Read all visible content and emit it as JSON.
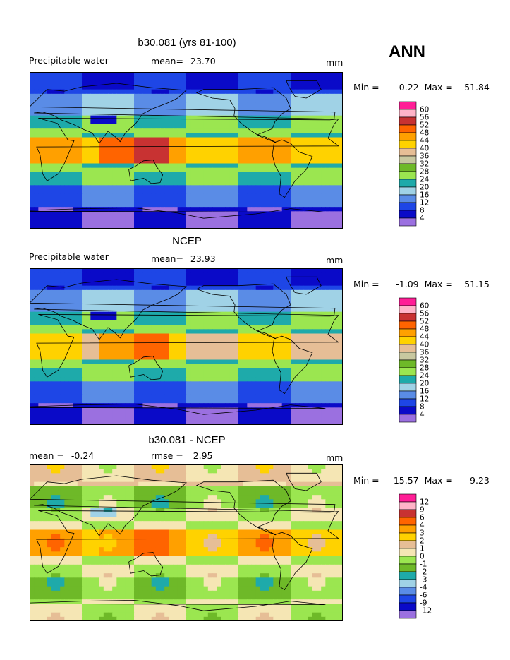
{
  "season_label": "ANN",
  "colors": {
    "abs_scale": [
      "#9b70e0",
      "#0a0ac8",
      "#1e46e6",
      "#5a8ce6",
      "#a0d2e6",
      "#1eaaaa",
      "#9be650",
      "#6eb928",
      "#c8c8a0",
      "#e6be96",
      "#ffd200",
      "#ffa000",
      "#ff6400",
      "#c83232",
      "#ffb4c8",
      "#ff1e96"
    ],
    "diff_scale": [
      "#9b70e0",
      "#0a0ac8",
      "#1e46e6",
      "#5a8ce6",
      "#a0d2e6",
      "#1eaaaa",
      "#6eb928",
      "#9be650",
      "#f5e6b4",
      "#e6be96",
      "#ffd200",
      "#ffa000",
      "#ff6400",
      "#c83232",
      "#ffb4c8",
      "#ff1e96"
    ],
    "land": "#000000"
  },
  "chart_data": [
    {
      "type": "heatmap",
      "title": "b30.081 (yrs 81-100)",
      "variable": "Precipitable water",
      "mean_label": "mean=",
      "mean": "23.70",
      "units": "mm",
      "min_label": "Min =",
      "min": "0.22",
      "max_label": "Max =",
      "max": "51.84",
      "colorbar_levels": [
        "4",
        "8",
        "12",
        "16",
        "20",
        "24",
        "28",
        "32",
        "36",
        "40",
        "44",
        "48",
        "52",
        "56",
        "60"
      ],
      "region_values": {
        "south_polar": 4,
        "south_mid": 12,
        "subtropics": 24,
        "tropics": 44,
        "warm_pool": 52,
        "north_mid": 16,
        "north_polar": 8,
        "highlands": 4
      }
    },
    {
      "type": "heatmap",
      "title": "NCEP",
      "variable": "Precipitable water",
      "mean_label": "mean=",
      "mean": "23.93",
      "units": "mm",
      "min_label": "Min =",
      "min": "-1.09",
      "max_label": "Max =",
      "max": "51.15",
      "colorbar_levels": [
        "4",
        "8",
        "12",
        "16",
        "20",
        "24",
        "28",
        "32",
        "36",
        "40",
        "44",
        "48",
        "52",
        "56",
        "60"
      ],
      "region_values": {
        "south_polar": 4,
        "south_mid": 12,
        "subtropics": 24,
        "tropics": 40,
        "warm_pool": 48,
        "north_mid": 16,
        "north_polar": 8,
        "highlands": 4
      }
    },
    {
      "type": "heatmap",
      "title": "b30.081 - NCEP",
      "variable": "",
      "mean_label": "mean =",
      "mean": "-0.24",
      "rmse_label": "rmse =",
      "rmse": "2.95",
      "units": "mm",
      "min_label": "Min =",
      "min": "-15.57",
      "max_label": "Max =",
      "max": "9.23",
      "colorbar_levels": [
        "-12",
        "-9",
        "-6",
        "-4",
        "-3",
        "-2",
        "-1",
        "0",
        "1",
        "2",
        "3",
        "4",
        "6",
        "9",
        "12"
      ],
      "region_values": {
        "south_polar": 0,
        "south_mid": -1,
        "subtropics": 0,
        "tropics": 3,
        "warm_pool": 4,
        "north_mid": -1,
        "north_polar": 1,
        "highlands": -4
      }
    }
  ]
}
